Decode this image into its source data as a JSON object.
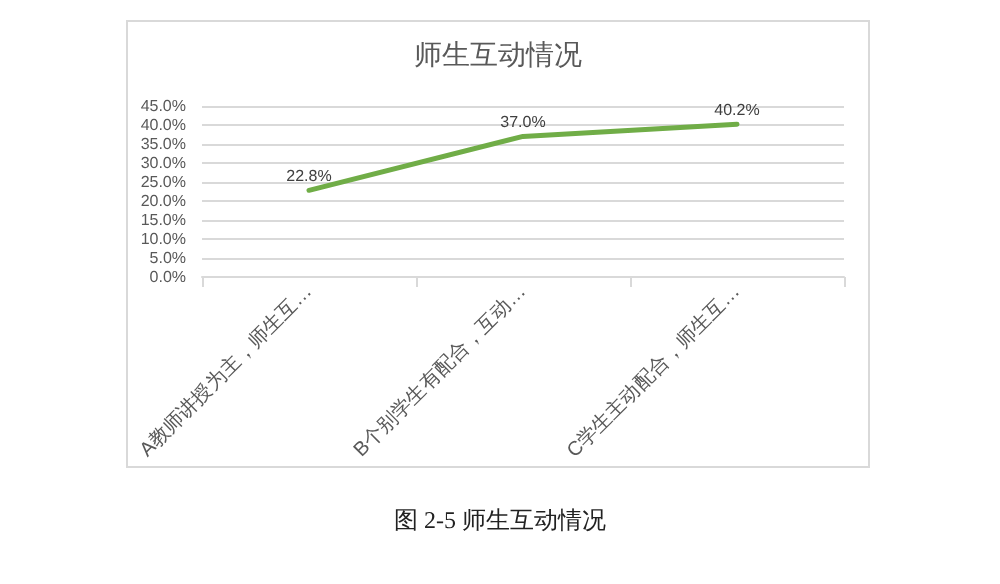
{
  "chart_data": {
    "type": "line",
    "title": "师生互动情况",
    "categories": [
      "A教师讲授为主，师生互…",
      "B个别学生有配合，互动…",
      "C学生主动配合，师生互…"
    ],
    "series": [
      {
        "color": "#70ad47",
        "values": [
          22.8,
          37.0,
          40.2
        ],
        "value_labels": [
          "22.8%",
          "37.0%",
          "40.2%"
        ]
      }
    ],
    "ylim": [
      0,
      45
    ],
    "yticks": [
      {
        "value": 0,
        "label": "0.0%"
      },
      {
        "value": 5,
        "label": "5.0%"
      },
      {
        "value": 10,
        "label": "10.0%"
      },
      {
        "value": 15,
        "label": "15.0%"
      },
      {
        "value": 20,
        "label": "20.0%"
      },
      {
        "value": 25,
        "label": "25.0%"
      },
      {
        "value": 30,
        "label": "30.0%"
      },
      {
        "value": 35,
        "label": "35.0%"
      },
      {
        "value": 40,
        "label": "40.0%"
      },
      {
        "value": 45,
        "label": "45.0%"
      }
    ],
    "grid": "y",
    "marker": "none",
    "line_style": "solid",
    "annotations": [
      "图 2-5  师生互动情况"
    ]
  }
}
